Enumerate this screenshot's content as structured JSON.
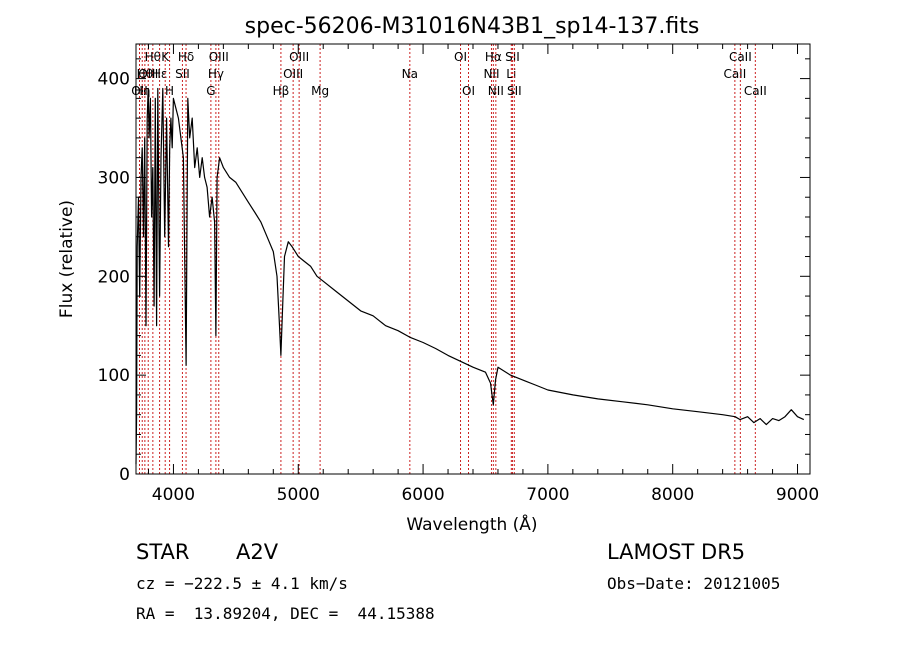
{
  "chart_data": {
    "type": "line",
    "title": "spec-56206-M31016N43B1_sp14-137.fits",
    "xlabel": "Wavelength (Å)",
    "ylabel": "Flux (relative)",
    "xlim": [
      3700,
      9100
    ],
    "ylim": [
      0,
      435
    ],
    "xticks": [
      4000,
      5000,
      6000,
      7000,
      8000,
      9000
    ],
    "yticks": [
      0,
      100,
      200,
      300,
      400
    ],
    "grid": false,
    "series": [
      {
        "x": [
          3700,
          3705,
          3710,
          3720,
          3730,
          3740,
          3750,
          3760,
          3770,
          3780,
          3790,
          3798,
          3805,
          3815,
          3825,
          3835,
          3845,
          3855,
          3865,
          3875,
          3889,
          3900,
          3915,
          3930,
          3945,
          3960,
          3970,
          3980,
          3990,
          4000,
          4020,
          4040,
          4060,
          4080,
          4101,
          4115,
          4130,
          4150,
          4170,
          4190,
          4210,
          4230,
          4250,
          4270,
          4290,
          4310,
          4330,
          4340,
          4350,
          4370,
          4400,
          4450,
          4500,
          4550,
          4600,
          4650,
          4700,
          4750,
          4800,
          4830,
          4850,
          4861,
          4872,
          4890,
          4920,
          4950,
          5000,
          5050,
          5100,
          5150,
          5200,
          5300,
          5400,
          5500,
          5600,
          5700,
          5800,
          5900,
          6000,
          6100,
          6200,
          6300,
          6400,
          6500,
          6540,
          6563,
          6580,
          6600,
          6700,
          6800,
          6900,
          7000,
          7200,
          7400,
          7600,
          7800,
          8000,
          8200,
          8400,
          8500,
          8540,
          8600,
          8650,
          8700,
          8750,
          8800,
          8850,
          8900,
          8950,
          9000,
          9050
        ],
        "y": [
          10,
          60,
          230,
          280,
          180,
          300,
          330,
          240,
          340,
          150,
          360,
          390,
          340,
          380,
          260,
          310,
          170,
          380,
          150,
          390,
          180,
          320,
          390,
          240,
          360,
          230,
          330,
          360,
          330,
          380,
          370,
          360,
          340,
          320,
          110,
          380,
          340,
          360,
          310,
          330,
          300,
          320,
          300,
          290,
          260,
          280,
          255,
          140,
          300,
          320,
          310,
          300,
          295,
          285,
          275,
          265,
          255,
          240,
          225,
          200,
          150,
          120,
          160,
          220,
          235,
          230,
          220,
          215,
          210,
          200,
          195,
          185,
          175,
          165,
          160,
          150,
          145,
          138,
          133,
          127,
          120,
          114,
          108,
          103,
          92,
          70,
          95,
          108,
          100,
          95,
          90,
          85,
          80,
          76,
          73,
          70,
          66,
          63,
          60,
          58,
          55,
          58,
          52,
          56,
          50,
          56,
          54,
          58,
          65,
          58,
          55
        ]
      }
    ],
    "lines": [
      {
        "w": 3728,
        "label": "OII",
        "row": 2
      },
      {
        "w": 3750,
        "label": "Hη",
        "row": 2
      },
      {
        "w": 3771,
        "label": "Hθ",
        "row": 1
      },
      {
        "w": 3798,
        "label": "OIII",
        "row": 1
      },
      {
        "w": 3835,
        "label": "Hθ",
        "row": 0
      },
      {
        "w": 3889,
        "label": "Hε",
        "row": 1
      },
      {
        "w": 3934,
        "label": "K",
        "row": 0
      },
      {
        "w": 3969,
        "label": "H",
        "row": 2
      },
      {
        "w": 4072,
        "label": "SII",
        "row": 1
      },
      {
        "w": 4101,
        "label": "Hδ",
        "row": 0
      },
      {
        "w": 4300,
        "label": "G",
        "row": 2
      },
      {
        "w": 4340,
        "label": "Hγ",
        "row": 1
      },
      {
        "w": 4363,
        "label": "OIII",
        "row": 0
      },
      {
        "w": 4861,
        "label": "Hβ",
        "row": 2
      },
      {
        "w": 4959,
        "label": "OIII",
        "row": 1
      },
      {
        "w": 5007,
        "label": "OIII",
        "row": 0
      },
      {
        "w": 5175,
        "label": "Mg",
        "row": 2
      },
      {
        "w": 5894,
        "label": "Na",
        "row": 1
      },
      {
        "w": 6300,
        "label": "OI",
        "row": 0
      },
      {
        "w": 6364,
        "label": "OI",
        "row": 2
      },
      {
        "w": 6548,
        "label": "NII",
        "row": 1
      },
      {
        "w": 6563,
        "label": "Hα",
        "row": 0
      },
      {
        "w": 6583,
        "label": "NII",
        "row": 2
      },
      {
        "w": 6707,
        "label": "Li",
        "row": 1
      },
      {
        "w": 6716,
        "label": "SII",
        "row": 0
      },
      {
        "w": 6731,
        "label": "SII",
        "row": 2
      },
      {
        "w": 8498,
        "label": "CaII",
        "row": 1
      },
      {
        "w": 8542,
        "label": "CaII",
        "row": 0
      },
      {
        "w": 8662,
        "label": "CaII",
        "row": 2
      }
    ]
  },
  "info": {
    "object_class": "STAR",
    "subclass": "A2V",
    "survey": "LAMOST DR5",
    "cz": "cz = −222.5 ± 4.1 km/s",
    "obs_date": "Obs−Date: 20121005",
    "coords": "RA =  13.89204, DEC =  44.15388"
  },
  "colors": {
    "line_marker": "#cc2222",
    "spectrum": "#000000"
  }
}
